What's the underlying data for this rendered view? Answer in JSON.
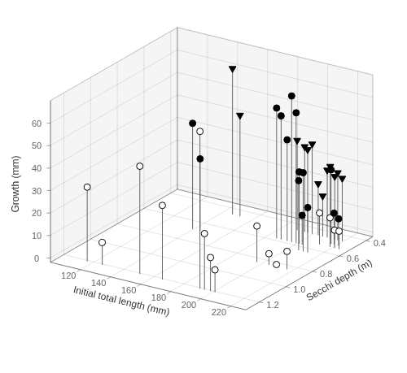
{
  "chart_data": {
    "type": "scatter3d",
    "xlabel": "Initial total length (mm)",
    "ylabel": "Secchi depth (m)",
    "zlabel": "Growth (mm)",
    "xlim": [
      100,
      230
    ],
    "ylim": [
      1.3,
      0.35
    ],
    "zlim": [
      -2,
      70
    ],
    "xticks": [
      120,
      140,
      160,
      180,
      200,
      220
    ],
    "yticks": [
      1.2,
      {
        "value": 1.0,
        "label": "1.0"
      },
      0.8,
      0.6,
      0.4
    ],
    "zticks": [
      0,
      10,
      20,
      30,
      40,
      50,
      60
    ],
    "grid": true,
    "series": [
      {
        "marker": "circle",
        "color": "white",
        "x": [
          120,
          130,
          155,
          170,
          195,
          198,
          200,
          202,
          205,
          208,
          213,
          215,
          220,
          222,
          225,
          228
        ],
        "y": [
          1.25,
          1.25,
          1.25,
          1.25,
          1.25,
          1.25,
          0.88,
          1.25,
          1.25,
          0.88,
          0.88,
          0.58,
          0.88,
          0.58,
          0.58,
          0.58
        ],
        "z": [
          33,
          10,
          48,
          33,
          70,
          25,
          16,
          15,
          10,
          5,
          1,
          14,
          8,
          13,
          8,
          8
        ]
      },
      {
        "marker": "circle",
        "color": "black",
        "x": [
          143,
          148,
          190,
          193,
          197,
          200,
          203,
          205,
          207,
          210,
          213,
          216,
          220,
          222,
          225
        ],
        "y": [
          0.72,
          0.72,
          0.62,
          0.62,
          0.62,
          0.62,
          0.62,
          0.62,
          0.62,
          0.68,
          0.68,
          0.68,
          0.55,
          0.55,
          0.55
        ],
        "z": [
          47,
          32,
          58,
          55,
          45,
          65,
          58,
          32,
          13,
          31,
          35,
          20,
          33,
          14,
          12
        ]
      },
      {
        "marker": "triangle_down",
        "color": "black",
        "x": [
          150,
          155,
          193,
          198,
          200,
          203,
          207,
          210,
          213,
          215,
          218,
          220,
          223
        ],
        "y": [
          0.5,
          0.5,
          0.5,
          0.5,
          0.5,
          0.5,
          0.5,
          0.5,
          0.5,
          0.5,
          0.5,
          0.5,
          0.5
        ],
        "z": [
          65,
          45,
          40,
          38,
          37,
          40,
          23,
          18,
          30,
          32,
          28,
          30,
          28
        ]
      }
    ]
  }
}
